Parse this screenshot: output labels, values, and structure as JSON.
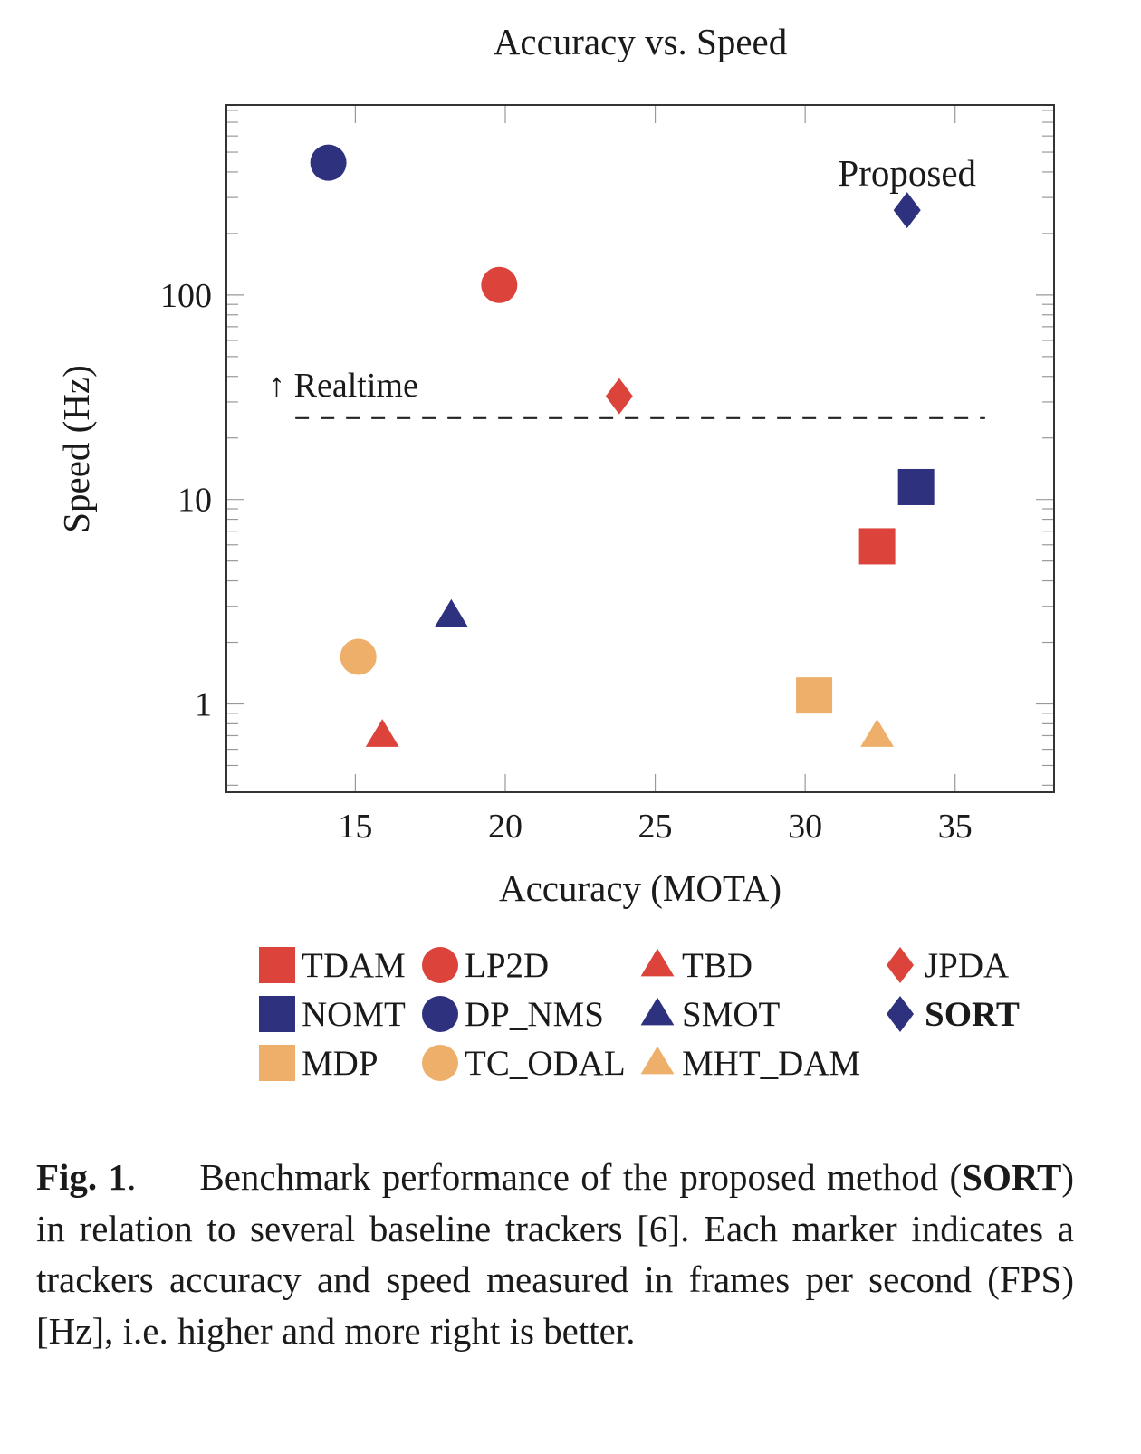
{
  "chart_data": {
    "type": "scatter",
    "title": "Accuracy vs. Speed",
    "xlabel": "Accuracy (MOTA)",
    "ylabel": "Speed (Hz)",
    "xlim": [
      10.7,
      38.3
    ],
    "ylim": [
      0.37,
      850
    ],
    "yscale": "log",
    "xticks": [
      15,
      20,
      25,
      30,
      35
    ],
    "xtick_labels": [
      "15",
      "20",
      "25",
      "30",
      "35"
    ],
    "yticks": [
      1,
      10,
      100
    ],
    "ytick_labels": [
      "1",
      "10",
      "100"
    ],
    "grid": false,
    "legend_position": "below",
    "colors": {
      "red": "#dc433b",
      "navy": "#2e327e",
      "orange": "#eeaf6b"
    },
    "series": [
      {
        "name": "TDAM",
        "marker": "square",
        "color": "red",
        "x": 32.4,
        "y": 5.9
      },
      {
        "name": "LP2D",
        "marker": "circle",
        "color": "red",
        "x": 19.8,
        "y": 112
      },
      {
        "name": "TBD",
        "marker": "triangle",
        "color": "red",
        "x": 15.9,
        "y": 0.7
      },
      {
        "name": "JPDA",
        "marker": "diamond",
        "color": "red",
        "x": 23.8,
        "y": 32
      },
      {
        "name": "NOMT",
        "marker": "square",
        "color": "navy",
        "x": 33.7,
        "y": 11.5
      },
      {
        "name": "DP_NMS",
        "marker": "circle",
        "color": "navy",
        "x": 14.1,
        "y": 444
      },
      {
        "name": "SMOT",
        "marker": "triangle",
        "color": "navy",
        "x": 18.2,
        "y": 2.7
      },
      {
        "name": "SORT",
        "marker": "diamond",
        "color": "navy",
        "x": 33.4,
        "y": 260,
        "bold": true
      },
      {
        "name": "MDP",
        "marker": "square",
        "color": "orange",
        "x": 30.3,
        "y": 1.1
      },
      {
        "name": "TC_ODAL",
        "marker": "circle",
        "color": "orange",
        "x": 15.1,
        "y": 1.7
      },
      {
        "name": "MHT_DAM",
        "marker": "triangle",
        "color": "orange",
        "x": 32.4,
        "y": 0.7
      }
    ],
    "annotations": [
      {
        "text": "Proposed",
        "x": 33.4,
        "y": 260
      },
      {
        "text": "↑ Realtime",
        "x": 13,
        "y": 25
      }
    ],
    "reference_line": {
      "label": "Realtime",
      "y": 25,
      "x_range": [
        13,
        36
      ],
      "style": "dashed"
    }
  },
  "legend_rows": [
    [
      "TDAM",
      "LP2D",
      "TBD",
      "JPDA"
    ],
    [
      "NOMT",
      "DP_NMS",
      "SMOT",
      "SORT"
    ],
    [
      "MDP",
      "TC_ODAL",
      "MHT_DAM"
    ]
  ],
  "caption": {
    "label": "Fig. 1",
    "label_punct": ".",
    "text_1": "Benchmark performance of the proposed method (",
    "bold_term": "SORT",
    "text_2": ") in relation to several baseline trackers [6].  Each marker indicates a trackers accuracy and speed measured in frames per second (FPS) [Hz], i.e.  higher and more right is better."
  }
}
